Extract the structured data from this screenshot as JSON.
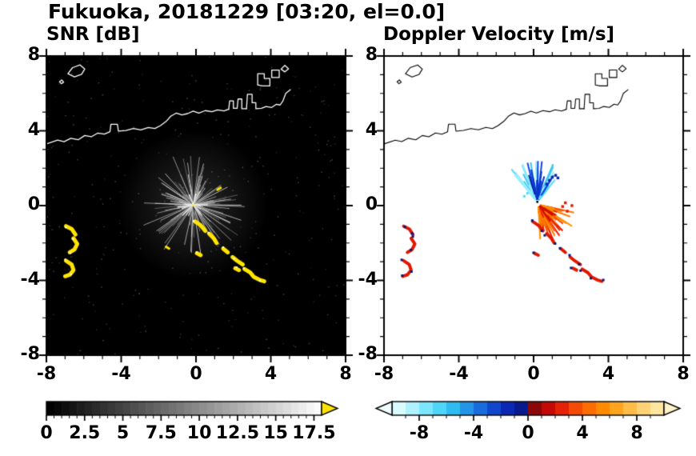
{
  "header": {
    "title": "Fukuoka, 20181229 [03:20, el=0.0]"
  },
  "panels": [
    {
      "subtitle": "SNR [dB]"
    },
    {
      "subtitle": "Doppler Velocity [m/s]"
    }
  ],
  "basemap": {
    "coastlines": [
      [
        [
          -8,
          3.3
        ],
        [
          -7.4,
          3.5
        ],
        [
          -7.05,
          3.42
        ],
        [
          -6.7,
          3.6
        ],
        [
          -6.3,
          3.52
        ],
        [
          -5.95,
          3.75
        ],
        [
          -5.6,
          3.68
        ],
        [
          -5.25,
          3.88
        ],
        [
          -4.9,
          3.82
        ],
        [
          -4.6,
          3.95
        ],
        [
          -4.55,
          4.35
        ],
        [
          -4.2,
          4.35
        ],
        [
          -4.15,
          3.98
        ],
        [
          -3.75,
          4.02
        ],
        [
          -3.35,
          4.12
        ],
        [
          -2.95,
          4.05
        ],
        [
          -2.55,
          4.18
        ],
        [
          -2.2,
          4.12
        ],
        [
          -1.9,
          4.28
        ],
        [
          -1.6,
          4.5
        ],
        [
          -1.35,
          4.78
        ],
        [
          -1.05,
          4.95
        ],
        [
          -0.75,
          4.85
        ],
        [
          -0.45,
          4.92
        ],
        [
          -0.15,
          5.05
        ],
        [
          0.15,
          4.95
        ],
        [
          0.5,
          5.08
        ],
        [
          0.85,
          5.02
        ],
        [
          1.15,
          5.12
        ],
        [
          1.5,
          5.06
        ],
        [
          1.75,
          5.15
        ]
      ],
      [
        [
          1.75,
          5.15
        ],
        [
          1.8,
          5.6
        ],
        [
          2.0,
          5.6
        ],
        [
          2.0,
          5.2
        ],
        [
          2.2,
          5.2
        ],
        [
          2.25,
          5.7
        ],
        [
          2.45,
          5.7
        ],
        [
          2.45,
          5.18
        ],
        [
          2.7,
          5.18
        ]
      ],
      [
        [
          2.7,
          5.18
        ],
        [
          2.75,
          5.95
        ],
        [
          3.0,
          5.95
        ],
        [
          3.0,
          5.5
        ],
        [
          3.2,
          5.5
        ],
        [
          3.2,
          5.18
        ],
        [
          3.5,
          5.2
        ],
        [
          3.75,
          5.3
        ],
        [
          4.05,
          5.25
        ],
        [
          4.3,
          5.42
        ],
        [
          4.5,
          5.38
        ],
        [
          4.65,
          5.6
        ],
        [
          4.8,
          6.0
        ],
        [
          5.05,
          6.2
        ]
      ],
      [
        [
          3.3,
          6.45
        ],
        [
          3.3,
          7.05
        ],
        [
          3.65,
          7.05
        ],
        [
          3.65,
          6.8
        ],
        [
          3.95,
          6.8
        ],
        [
          3.95,
          6.4
        ],
        [
          3.55,
          6.4
        ],
        [
          3.3,
          6.45
        ]
      ],
      [
        [
          4.05,
          6.85
        ],
        [
          4.05,
          7.25
        ],
        [
          4.45,
          7.25
        ],
        [
          4.45,
          6.85
        ],
        [
          4.05,
          6.85
        ]
      ],
      [
        [
          4.55,
          7.3
        ],
        [
          4.75,
          7.5
        ],
        [
          4.95,
          7.32
        ],
        [
          4.75,
          7.15
        ],
        [
          4.55,
          7.3
        ]
      ],
      [
        [
          -6.85,
          7.05
        ],
        [
          -6.6,
          7.38
        ],
        [
          -6.2,
          7.52
        ],
        [
          -5.95,
          7.3
        ],
        [
          -6.12,
          7.02
        ],
        [
          -6.5,
          6.88
        ],
        [
          -6.85,
          7.05
        ]
      ],
      [
        [
          -7.3,
          6.62
        ],
        [
          -7.18,
          6.72
        ],
        [
          -7.08,
          6.6
        ],
        [
          -7.2,
          6.52
        ],
        [
          -7.3,
          6.62
        ]
      ]
    ],
    "echo_polylines": [
      [
        [
          -6.95,
          -1.1
        ],
        [
          -6.65,
          -1.25
        ],
        [
          -6.45,
          -1.55
        ]
      ],
      [
        [
          -6.55,
          -1.75
        ],
        [
          -6.35,
          -2.05
        ],
        [
          -6.5,
          -2.35
        ],
        [
          -6.75,
          -2.5
        ]
      ],
      [
        [
          -6.95,
          -2.95
        ],
        [
          -6.65,
          -3.15
        ],
        [
          -6.55,
          -3.45
        ],
        [
          -6.75,
          -3.7
        ],
        [
          -7.0,
          -3.78
        ]
      ],
      [
        [
          -0.05,
          -0.85
        ],
        [
          0.25,
          -1.05
        ],
        [
          0.5,
          -1.35
        ]
      ],
      [
        [
          0.7,
          -1.5
        ],
        [
          0.95,
          -1.75
        ],
        [
          1.1,
          -2.0
        ]
      ],
      [
        [
          1.45,
          -2.3
        ],
        [
          1.7,
          -2.5
        ]
      ],
      [
        [
          1.95,
          -2.75
        ],
        [
          2.2,
          -2.95
        ],
        [
          2.5,
          -3.15
        ]
      ],
      [
        [
          2.6,
          -3.4
        ],
        [
          2.9,
          -3.58
        ],
        [
          3.1,
          -3.82
        ],
        [
          3.4,
          -3.97
        ],
        [
          3.65,
          -4.05
        ]
      ],
      [
        [
          2.1,
          -3.35
        ],
        [
          2.3,
          -3.45
        ]
      ],
      [
        [
          0.05,
          -2.55
        ],
        [
          0.25,
          -2.65
        ]
      ]
    ]
  },
  "chart_data": [
    {
      "type": "heatmap",
      "title": "SNR [dB]",
      "xlim": [
        -8,
        8
      ],
      "ylim": [
        -8,
        8
      ],
      "x_tick_values": [
        -8,
        -4,
        0,
        4,
        8
      ],
      "x_tick_labels": [
        "-8",
        "-4",
        "0",
        "4",
        "8"
      ],
      "y_tick_values": [
        8,
        4,
        0,
        -4,
        -8
      ],
      "y_tick_labels": [
        "8",
        "4",
        "0",
        "-4",
        "-8"
      ],
      "minor_tick_step": 1,
      "background": "#000000",
      "colorbar": {
        "min": 0,
        "max": 17.5,
        "tick_values": [
          0,
          2.5,
          5,
          7.5,
          10,
          12.5,
          15,
          17.5
        ],
        "tick_labels": [
          "0",
          "2.5",
          "5",
          "7.5",
          "10",
          "12.5",
          "15",
          "17.5"
        ],
        "minor_step": 0.5,
        "style": "grayscale-black-to-white",
        "overflow_arrow_color": "#FFE400"
      },
      "features": {
        "radar_center": [
          -0.15,
          0.05
        ],
        "clutter_fan": {
          "count": 150,
          "min_len": 0.3,
          "max_len": 2.6,
          "gray_min": 95,
          "gray_max": 220,
          "seed": 7
        },
        "bright_core": {
          "count": 24,
          "max_len": 0.75,
          "gray_min": 190,
          "gray_max": 255,
          "seed": 21
        },
        "noise": {
          "count": 320,
          "gray_min": 28,
          "gray_max": 85,
          "seed": 5
        },
        "echo_color": "#FFE400",
        "echo_width": 5,
        "small_dashes": [
          [
            [
              1.15,
              0.85
            ],
            [
              1.32,
              0.95
            ]
          ],
          [
            [
              -1.6,
              -2.2
            ],
            [
              -1.44,
              -2.3
            ]
          ]
        ]
      }
    },
    {
      "type": "heatmap",
      "title": "Doppler Velocity [m/s]",
      "xlim": [
        -8,
        8
      ],
      "ylim": [
        -8,
        8
      ],
      "x_tick_values": [
        -8,
        -4,
        0,
        4,
        8
      ],
      "x_tick_labels": [
        "-8",
        "-4",
        "0",
        "4",
        "8"
      ],
      "y_tick_values": [
        8,
        4,
        0,
        -4,
        -8
      ],
      "y_tick_labels": [
        "8",
        "4",
        "0",
        "-4",
        "-8"
      ],
      "minor_tick_step": 1,
      "background": "#FFFFFF",
      "colorbar": {
        "min": -10,
        "max": 10,
        "tick_values": [
          -8,
          -4,
          0,
          4,
          8
        ],
        "tick_labels": [
          "-8",
          "-4",
          "0",
          "4",
          "8"
        ],
        "minor_step": 1,
        "segment_colors": [
          "#D8FBFF",
          "#AEF2FF",
          "#7CE6FF",
          "#4FD5F9",
          "#2FBCF0",
          "#2295E6",
          "#186CDC",
          "#1146CE",
          "#0A28B4",
          "#071A8E",
          "#8C0808",
          "#C40A06",
          "#E52207",
          "#F44A04",
          "#FB6C02",
          "#FF8A00",
          "#FFA41E",
          "#FFBC48",
          "#FFD275",
          "#FFE6A0"
        ],
        "left_arrow_color": "#EFFEFF",
        "right_arrow_color": "#FFF3C8"
      },
      "features": {
        "fans": [
          {
            "cx": 0.2,
            "cy": 0.2,
            "a0": 48,
            "a1": 132,
            "count": 60,
            "min_len": 0.3,
            "max_len": 2.0,
            "colors": [
              "#55DCF8",
              "#7FE8FF",
              "#3CC6F2",
              "#9BEFFF"
            ],
            "seed": 11,
            "width": 2
          },
          {
            "cx": 0.2,
            "cy": 0.2,
            "a0": 58,
            "a1": 112,
            "count": 13,
            "min_len": 0.7,
            "max_len": 2.1,
            "colors": [
              "#0A34C8",
              "#1246E6",
              "#061FA0"
            ],
            "seed": 12,
            "width": 2
          },
          {
            "cx": 0.25,
            "cy": 0.05,
            "a0": -88,
            "a1": -12,
            "count": 70,
            "min_len": 0.3,
            "max_len": 1.9,
            "colors": [
              "#FF7A00",
              "#F85200",
              "#E82600",
              "#FF9400"
            ],
            "seed": 13,
            "width": 2
          },
          {
            "cx": 0.25,
            "cy": 0.05,
            "a0": -62,
            "a1": -30,
            "count": 10,
            "min_len": 0.2,
            "max_len": 0.9,
            "colors": [
              "#D21000"
            ],
            "seed": 14,
            "width": 2
          }
        ],
        "navy_dots": [
          [
            0.85,
            1.35
          ],
          [
            1.0,
            1.52
          ],
          [
            1.18,
            1.62
          ],
          [
            0.7,
            1.15
          ],
          [
            1.3,
            1.48
          ]
        ],
        "navy_dot_color": "#0726B4",
        "red_dots": [
          [
            1.55,
            -0.05
          ],
          [
            1.8,
            -0.3
          ],
          [
            2.05,
            0.0
          ],
          [
            1.7,
            0.15
          ]
        ],
        "red_dot_color": "#E01800",
        "cyan_dots": [
          [
            -0.5,
            0.5
          ],
          [
            -0.33,
            0.66
          ]
        ],
        "cyan_dot_color": "#55D8F5",
        "echo_color": "#E01800",
        "echo_speck_color": "#001A80",
        "echo_width": 4
      }
    }
  ]
}
